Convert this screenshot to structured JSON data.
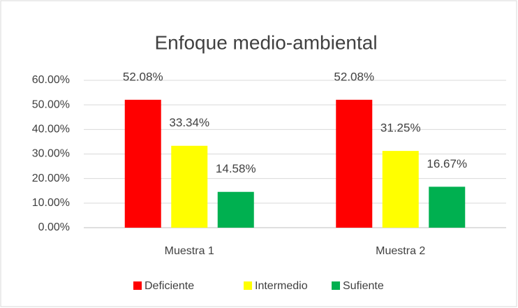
{
  "chart_data": {
    "type": "bar",
    "title": "Enfoque medio-ambiental",
    "categories": [
      "Muestra 1",
      "Muestra 2"
    ],
    "series": [
      {
        "name": "Deficiente",
        "color": "#ff0000",
        "values": [
          52.08,
          52.08
        ],
        "value_labels": [
          "52.08%",
          "52.08%"
        ]
      },
      {
        "name": "Intermedio",
        "color": "#ffff00",
        "values": [
          33.34,
          31.25
        ],
        "value_labels": [
          "33.34%",
          "31.25%"
        ]
      },
      {
        "name": "Sufiente",
        "color": "#00b050",
        "values": [
          14.58,
          16.67
        ],
        "value_labels": [
          "14.58%",
          "16.67%"
        ]
      }
    ],
    "ylim": [
      0,
      60
    ],
    "yticks": [
      {
        "value": 0,
        "label": "0.00%"
      },
      {
        "value": 10,
        "label": "10.00%"
      },
      {
        "value": 20,
        "label": "20.00%"
      },
      {
        "value": 30,
        "label": "30.00%"
      },
      {
        "value": 40,
        "label": "40.00%"
      },
      {
        "value": 50,
        "label": "50.00%"
      },
      {
        "value": 60,
        "label": "60.00%"
      }
    ],
    "grid": true,
    "legend": "bottom"
  }
}
